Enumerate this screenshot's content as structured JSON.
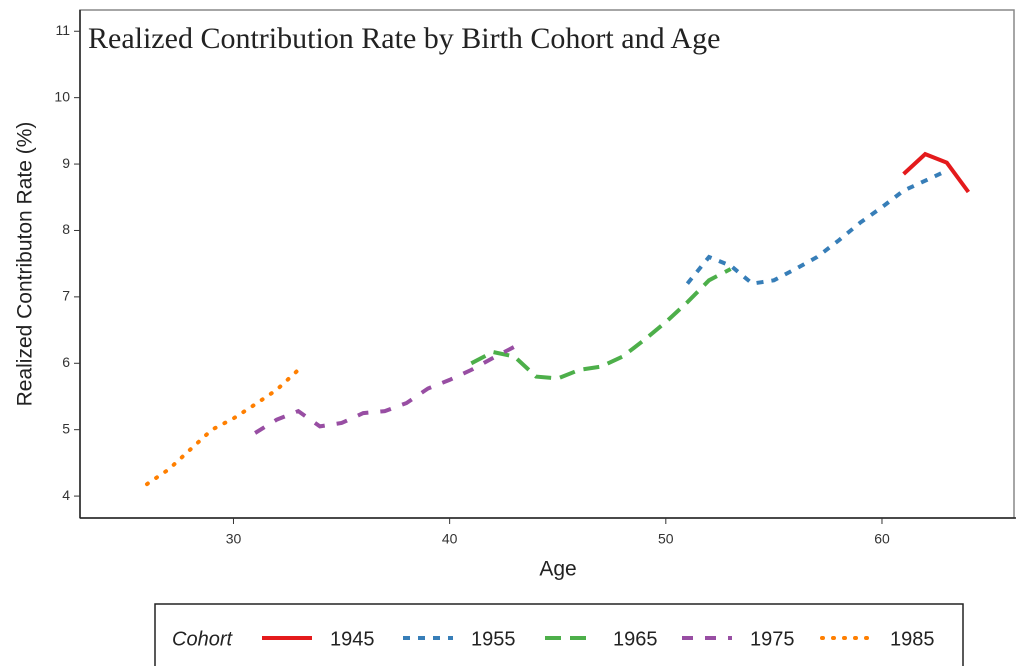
{
  "chart_data": {
    "type": "line",
    "title": "Realized Contribution Rate by Birth Cohort and Age",
    "x_label": "Age",
    "y_label": "Realized Contributon Rate (%)",
    "legend_title": "Cohort",
    "legend_position": "bottom",
    "xlim": [
      22.9,
      66.2
    ],
    "xticks": [
      30,
      40,
      50,
      60
    ],
    "ylim": [
      3.67,
      11.32
    ],
    "yticks": [
      4,
      5,
      6,
      7,
      8,
      9,
      10,
      11
    ],
    "series": [
      {
        "name": "1945",
        "color": "#e41a1c",
        "linestyle": "solid",
        "x": [
          61,
          62,
          63,
          64
        ],
        "values": [
          8.85,
          9.15,
          9.02,
          8.58
        ]
      },
      {
        "name": "1955",
        "color": "#377eb8",
        "linestyle": "dashed",
        "x": [
          51,
          52,
          53,
          54,
          55,
          56,
          57,
          58,
          59,
          60,
          61,
          62,
          63
        ],
        "values": [
          7.2,
          7.6,
          7.47,
          7.2,
          7.25,
          7.42,
          7.6,
          7.85,
          8.12,
          8.35,
          8.6,
          8.75,
          8.9
        ]
      },
      {
        "name": "1965",
        "color": "#4daf4a",
        "linestyle": "longdash",
        "x": [
          41,
          42,
          43,
          44,
          45,
          46,
          47,
          48,
          49,
          50,
          51,
          52,
          53
        ],
        "values": [
          6.0,
          6.17,
          6.1,
          5.8,
          5.77,
          5.9,
          5.95,
          6.1,
          6.35,
          6.62,
          6.92,
          7.25,
          7.42
        ]
      },
      {
        "name": "1975",
        "color": "#984ea3",
        "linestyle": "twodash",
        "x": [
          31,
          32,
          33,
          34,
          35,
          36,
          37,
          38,
          39,
          40,
          41,
          42,
          43
        ],
        "values": [
          4.95,
          5.15,
          5.28,
          5.05,
          5.1,
          5.25,
          5.28,
          5.4,
          5.62,
          5.75,
          5.9,
          6.08,
          6.25
        ]
      },
      {
        "name": "1985",
        "color": "#ff7f00",
        "linestyle": "dotted",
        "x": [
          26,
          27,
          28,
          29,
          30,
          31,
          32,
          33
        ],
        "values": [
          4.18,
          4.4,
          4.7,
          5.0,
          5.17,
          5.38,
          5.6,
          5.9
        ]
      }
    ]
  }
}
